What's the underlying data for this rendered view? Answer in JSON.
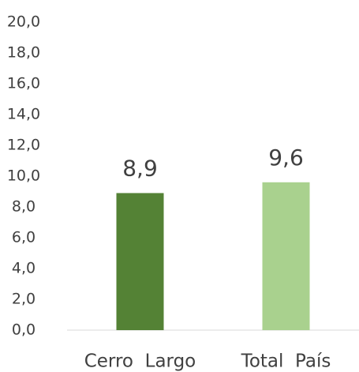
{
  "chart_data": {
    "type": "bar",
    "categories": [
      "Cerro  Largo",
      "Total  País"
    ],
    "values": [
      8.9,
      9.6
    ],
    "value_labels": [
      "8,9",
      "9,6"
    ],
    "colors": [
      "#548235",
      "#a9d18e"
    ],
    "ylim": [
      0,
      20
    ],
    "yticks": [
      {
        "value": 0,
        "label": "0,0"
      },
      {
        "value": 2,
        "label": "2,0"
      },
      {
        "value": 4,
        "label": "4,0"
      },
      {
        "value": 6,
        "label": "6,0"
      },
      {
        "value": 8,
        "label": "8,0"
      },
      {
        "value": 10,
        "label": "10,0"
      },
      {
        "value": 12,
        "label": "12,0"
      },
      {
        "value": 14,
        "label": "14,0"
      },
      {
        "value": 16,
        "label": "16,0"
      },
      {
        "value": 18,
        "label": "18,0"
      },
      {
        "value": 20,
        "label": "20,0"
      }
    ],
    "grid": false
  }
}
